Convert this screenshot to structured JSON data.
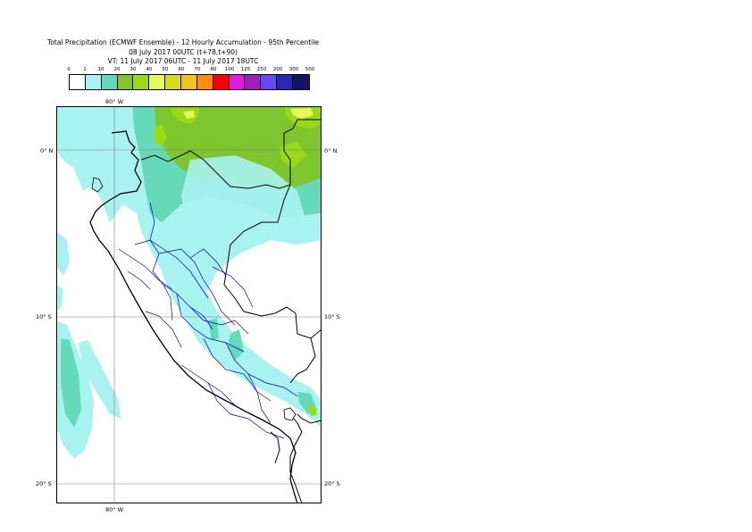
{
  "title": {
    "line1": "Total Precipitation (ECMWF Ensemble) - 12 Hourly Accumulation - 95th Percentile",
    "line2": "08 July 2017 00UTC (t+78,t+90)",
    "line3": "VT: 11 July 2017 06UTC - 11 July 2017 18UTC"
  },
  "legend": {
    "ticks": [
      "0",
      "1",
      "10",
      "20",
      "30",
      "40",
      "50",
      "60",
      "70",
      "80",
      "100",
      "125",
      "150",
      "200",
      "300",
      "500"
    ],
    "colors": [
      "#ffffff",
      "#a8f2f0",
      "#64dab8",
      "#7ec62d",
      "#9ada14",
      "#e4fa5a",
      "#d2df18",
      "#f0c21e",
      "#ff8b12",
      "#ff0000",
      "#e31ae3",
      "#a01eb6",
      "#6448f0",
      "#2828b4",
      "#141464"
    ]
  },
  "map": {
    "lon_labels_top": [
      "80° W"
    ],
    "lon_labels_bottom": [
      "80° W"
    ],
    "lat_labels_left": [
      "0° N",
      "10° S",
      "20° S"
    ],
    "lat_labels_right": [
      "0° N",
      "10° S",
      "20° S"
    ],
    "colors": {
      "ocean_light": "#a8f2f0",
      "teal": "#64dab8",
      "green": "#7ec62d",
      "lime": "#9ada14",
      "yellow": "#e4fa5a",
      "coast": "#000000",
      "admin": "#0000b4",
      "grid": "#7f7f7f"
    }
  }
}
